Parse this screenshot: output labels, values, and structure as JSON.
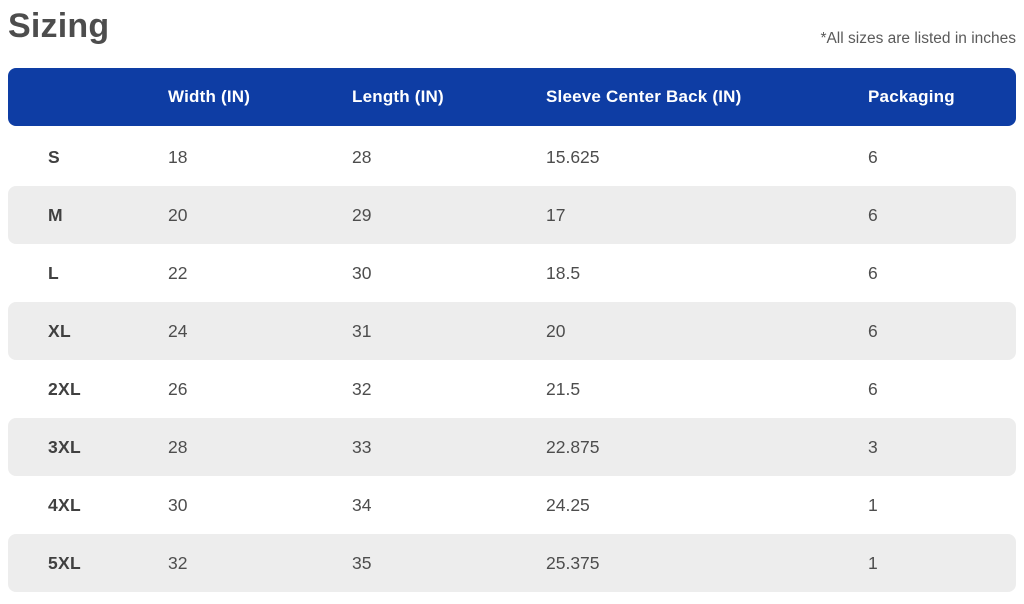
{
  "page": {
    "title": "Sizing",
    "note": "*All sizes are listed in inches"
  },
  "colors": {
    "header_bg": "#0e3da4",
    "row_alt_bg": "#ededed",
    "header_text": "#ffffff",
    "title_text": "#4d4d4d",
    "body_text": "#4d4d4d"
  },
  "table": {
    "columns": [
      "",
      "Width (IN)",
      "Length (IN)",
      "Sleeve Center Back (IN)",
      "Packaging"
    ],
    "rows": [
      {
        "size": "S",
        "width": "18",
        "length": "28",
        "sleeve": "15.625",
        "packaging": "6"
      },
      {
        "size": "M",
        "width": "20",
        "length": "29",
        "sleeve": "17",
        "packaging": "6"
      },
      {
        "size": "L",
        "width": "22",
        "length": "30",
        "sleeve": "18.5",
        "packaging": "6"
      },
      {
        "size": "XL",
        "width": "24",
        "length": "31",
        "sleeve": "20",
        "packaging": "6"
      },
      {
        "size": "2XL",
        "width": "26",
        "length": "32",
        "sleeve": "21.5",
        "packaging": "6"
      },
      {
        "size": "3XL",
        "width": "28",
        "length": "33",
        "sleeve": "22.875",
        "packaging": "3"
      },
      {
        "size": "4XL",
        "width": "30",
        "length": "34",
        "sleeve": "24.25",
        "packaging": "1"
      },
      {
        "size": "5XL",
        "width": "32",
        "length": "35",
        "sleeve": "25.375",
        "packaging": "1"
      }
    ]
  }
}
